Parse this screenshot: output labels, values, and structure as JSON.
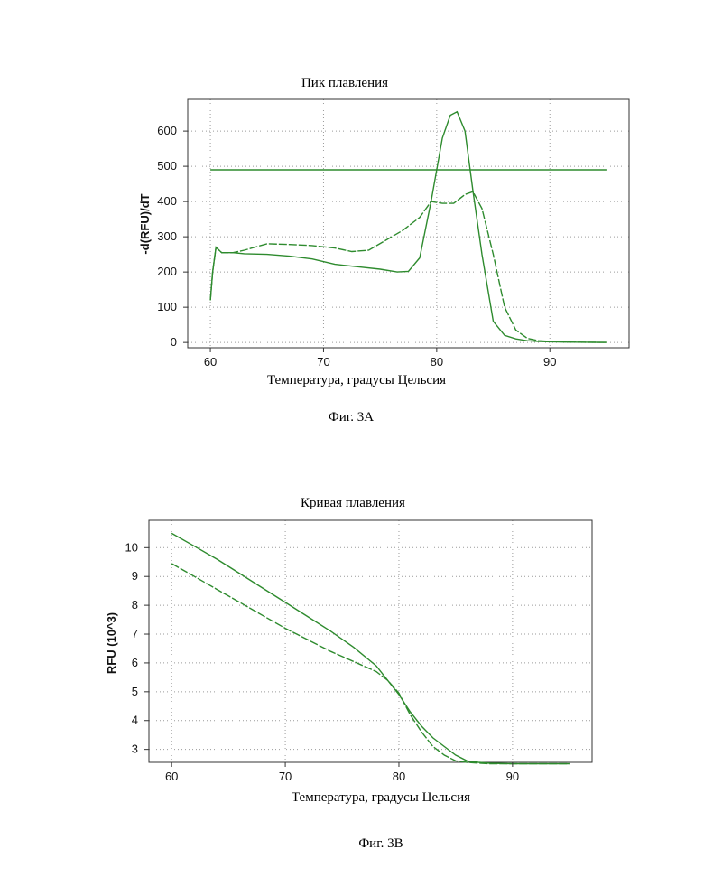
{
  "figure_a_caption": "Фиг. 3А",
  "figure_b_caption": "Фиг. 3В",
  "chart_data": [
    {
      "type": "line",
      "title": "Пик плавления",
      "xlabel": "Температура, градусы Цельсия",
      "ylabel": "-d(RFU)/dT",
      "xlim": [
        58,
        97
      ],
      "ylim": [
        -15,
        690
      ],
      "xticks": [
        60,
        70,
        80,
        90
      ],
      "yticks": [
        0,
        100,
        200,
        300,
        400,
        500,
        600
      ],
      "grid": true,
      "line_color": "#2e8b2e",
      "series": [
        {
          "x": [
            60,
            60.2,
            60.5,
            61,
            62,
            63,
            65,
            67,
            69,
            71,
            73,
            75,
            76.5,
            77.5,
            78.5,
            79.5,
            80.5,
            81.2,
            81.8,
            82.5,
            83.2,
            84,
            85,
            86,
            87,
            88,
            89,
            90,
            92,
            95
          ],
          "y": [
            120,
            200,
            270,
            255,
            255,
            252,
            250,
            245,
            237,
            222,
            215,
            208,
            200,
            202,
            240,
            400,
            580,
            645,
            655,
            600,
            430,
            250,
            60,
            20,
            10,
            5,
            3,
            2,
            1,
            0
          ]
        },
        {
          "x": [
            60,
            60.2,
            60.5,
            61,
            62,
            63,
            65,
            67,
            69,
            71,
            72.5,
            74,
            75.5,
            77,
            78.5,
            79.5,
            80.5,
            81.5,
            82.5,
            83.2,
            84,
            85,
            86,
            87,
            88,
            89,
            90,
            92,
            95
          ],
          "y": [
            120,
            200,
            270,
            255,
            255,
            262,
            280,
            278,
            275,
            268,
            258,
            262,
            290,
            318,
            355,
            400,
            395,
            395,
            420,
            428,
            380,
            250,
            100,
            35,
            12,
            5,
            3,
            1,
            0
          ]
        },
        {
          "x": [
            60,
            95
          ],
          "y": [
            490,
            490
          ]
        }
      ]
    },
    {
      "type": "line",
      "title": "Кривая плавления",
      "xlabel": "Температура, градусы Цельсия",
      "ylabel": "RFU (10^3)",
      "xlim": [
        58,
        97
      ],
      "ylim": [
        2.55,
        10.95
      ],
      "xticks": [
        60,
        70,
        80,
        90
      ],
      "yticks": [
        3,
        4,
        5,
        6,
        7,
        8,
        9,
        10
      ],
      "grid": true,
      "line_color": "#2e8b2e",
      "series": [
        {
          "x": [
            60,
            62,
            64,
            66,
            68,
            70,
            72,
            74,
            76,
            78,
            80,
            81,
            82,
            83,
            84,
            85,
            86,
            87,
            88,
            90,
            92,
            95
          ],
          "y": [
            10.5,
            10.05,
            9.6,
            9.1,
            8.6,
            8.1,
            7.6,
            7.1,
            6.55,
            5.9,
            4.9,
            4.3,
            3.8,
            3.4,
            3.1,
            2.8,
            2.6,
            2.55,
            2.52,
            2.5,
            2.5,
            2.5
          ]
        },
        {
          "x": [
            60,
            62,
            64,
            66,
            68,
            70,
            72,
            74,
            76,
            78,
            79,
            80,
            81,
            82,
            83,
            84,
            85,
            86,
            88,
            90,
            92,
            95
          ],
          "y": [
            9.45,
            9.0,
            8.55,
            8.1,
            7.65,
            7.2,
            6.8,
            6.4,
            6.05,
            5.7,
            5.4,
            4.95,
            4.2,
            3.6,
            3.1,
            2.8,
            2.6,
            2.55,
            2.5,
            2.5,
            2.5,
            2.5
          ]
        }
      ]
    }
  ]
}
